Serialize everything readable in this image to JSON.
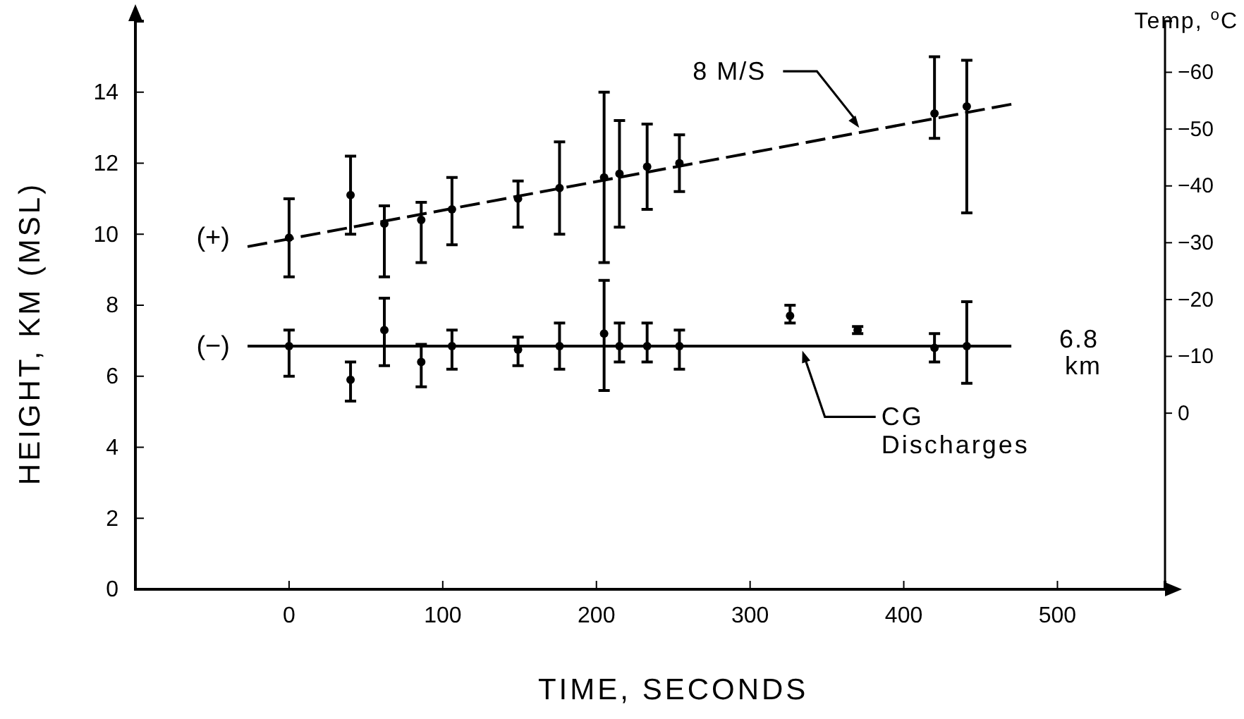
{
  "chart_data": {
    "type": "scatter",
    "xlabel": "TIME,  SECONDS",
    "ylabel": "HEIGHT,  KM (MSL)",
    "y2label": "Temp, $^{o}$C",
    "xlim": [
      -100,
      570
    ],
    "xticks": [
      0,
      100,
      200,
      300,
      400,
      500
    ],
    "ylim": [
      0,
      16
    ],
    "yticks": [
      0,
      2,
      4,
      6,
      8,
      10,
      12,
      14
    ],
    "y2lim": [
      31,
      -69
    ],
    "y2ticks": [
      -60,
      -50,
      -40,
      -30,
      -20,
      -10,
      0
    ],
    "grid": false,
    "legend": "left",
    "marker": "circle",
    "series": [
      {
        "name": "(+)",
        "color": "#000000",
        "x": [
          0,
          40,
          62,
          86,
          106,
          149,
          176,
          205,
          215,
          233,
          254,
          420,
          441
        ],
        "values": [
          9.9,
          11.1,
          10.3,
          10.4,
          10.7,
          11.0,
          11.3,
          11.6,
          11.7,
          11.9,
          12.0,
          13.4,
          13.6
        ],
        "errors": [
          [
            8.8,
            11.0
          ],
          [
            10.0,
            12.2
          ],
          [
            8.8,
            10.8
          ],
          [
            9.2,
            10.9
          ],
          [
            9.7,
            11.6
          ],
          [
            10.2,
            11.5
          ],
          [
            10.0,
            12.6
          ],
          [
            9.2,
            14.0
          ],
          [
            10.2,
            13.2
          ],
          [
            10.7,
            13.1
          ],
          [
            11.2,
            12.8
          ],
          [
            12.7,
            15.0
          ],
          [
            10.6,
            14.9
          ]
        ]
      },
      {
        "name": "(−)",
        "color": "#000000",
        "x": [
          0,
          40,
          62,
          86,
          106,
          149,
          176,
          205,
          215,
          233,
          254,
          326,
          370,
          420,
          441
        ],
        "values": [
          6.85,
          5.9,
          7.3,
          6.4,
          6.85,
          6.75,
          6.85,
          7.2,
          6.85,
          6.85,
          6.85,
          7.7,
          7.3,
          6.8,
          6.85
        ],
        "errors": [
          [
            6.0,
            7.3
          ],
          [
            5.3,
            6.4
          ],
          [
            6.3,
            8.2
          ],
          [
            5.7,
            6.9
          ],
          [
            6.2,
            7.3
          ],
          [
            6.3,
            7.1
          ],
          [
            6.2,
            7.5
          ],
          [
            5.6,
            8.7
          ],
          [
            6.4,
            7.5
          ],
          [
            6.4,
            7.5
          ],
          [
            6.2,
            7.3
          ],
          [
            7.5,
            8.0
          ],
          [
            7.2,
            7.4
          ],
          [
            6.4,
            7.2
          ],
          [
            5.8,
            8.1
          ]
        ]
      },
      {
        "type": "line",
        "color": "#000000",
        "marker": "none",
        "line_style": "dashed",
        "x": [
          -27,
          470
        ],
        "values": [
          9.65,
          13.66
        ]
      },
      {
        "type": "line",
        "color": "#000000",
        "marker": "none",
        "line_style": "solid",
        "x": [
          -27,
          470
        ],
        "values": [
          6.85,
          6.85
        ]
      }
    ],
    "annotations": [
      {
        "text": "8 M/S",
        "x": 371,
        "y": 13.0
      },
      {
        "text": "6.8 km",
        "x": 470,
        "y": 6.85
      },
      {
        "text": "CG Discharges",
        "x": 334,
        "y": 6.8
      }
    ]
  }
}
